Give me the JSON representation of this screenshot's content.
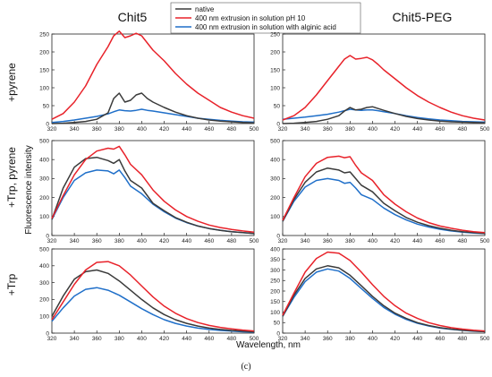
{
  "figure": {
    "column_titles": [
      "Chit5",
      "Chit5-PEG"
    ],
    "row_labels": [
      "+pyrene",
      "+Trp, pyrene",
      "+Trp"
    ],
    "ylabel": "Fluorescence intensity",
    "xlabel": "Wavelength, nm",
    "caption": "(c)",
    "legend": [
      {
        "label": "native",
        "color": "#3a3a3a"
      },
      {
        "label": "400 nm extrusion in solution pH 10",
        "color": "#e8222a"
      },
      {
        "label": "400 nm extrusion in solution with alginic acid",
        "color": "#1f6fc9"
      }
    ]
  },
  "chart_data": [
    {
      "type": "line",
      "panel": "pyrene-chit5",
      "xlim": [
        320,
        500
      ],
      "ylim": [
        0,
        250
      ],
      "xticks": [
        320,
        340,
        360,
        380,
        400,
        420,
        440,
        460,
        480,
        500
      ],
      "yticks": [
        0,
        50,
        100,
        150,
        200,
        250
      ],
      "x": [
        320,
        330,
        340,
        350,
        360,
        370,
        375,
        380,
        385,
        390,
        395,
        400,
        405,
        410,
        420,
        430,
        440,
        450,
        460,
        470,
        480,
        490,
        500
      ],
      "series": [
        {
          "name": "native",
          "values": [
            0,
            1,
            3,
            6,
            12,
            30,
            70,
            85,
            60,
            65,
            80,
            85,
            70,
            60,
            45,
            32,
            22,
            15,
            10,
            7,
            5,
            3,
            2
          ]
        },
        {
          "name": "400 nm extrusion in solution pH 10",
          "values": [
            12,
            28,
            60,
            105,
            165,
            215,
            245,
            258,
            240,
            245,
            252,
            245,
            225,
            205,
            175,
            140,
            110,
            85,
            65,
            45,
            32,
            22,
            15
          ]
        },
        {
          "name": "400 nm extrusion in solution with alginic acid",
          "values": [
            3,
            6,
            10,
            15,
            20,
            27,
            33,
            38,
            36,
            35,
            37,
            40,
            37,
            35,
            30,
            25,
            20,
            15,
            12,
            9,
            7,
            5,
            4
          ]
        }
      ]
    },
    {
      "type": "line",
      "panel": "pyrene-chit5peg",
      "xlim": [
        320,
        500
      ],
      "ylim": [
        0,
        250
      ],
      "xticks": [
        320,
        340,
        360,
        380,
        400,
        420,
        440,
        460,
        480,
        500
      ],
      "yticks": [
        0,
        50,
        100,
        150,
        200,
        250
      ],
      "x": [
        320,
        330,
        340,
        350,
        360,
        370,
        375,
        380,
        385,
        390,
        395,
        400,
        405,
        410,
        420,
        430,
        440,
        450,
        460,
        470,
        480,
        490,
        500
      ],
      "series": [
        {
          "name": "native",
          "values": [
            0,
            1,
            3,
            6,
            12,
            22,
            35,
            45,
            38,
            40,
            45,
            47,
            42,
            37,
            28,
            20,
            14,
            10,
            7,
            5,
            4,
            3,
            2
          ]
        },
        {
          "name": "400 nm extrusion in solution pH 10",
          "values": [
            10,
            22,
            45,
            80,
            120,
            160,
            180,
            190,
            180,
            182,
            185,
            178,
            165,
            150,
            125,
            100,
            78,
            60,
            45,
            32,
            22,
            15,
            10
          ]
        },
        {
          "name": "400 nm extrusion in solution with alginic acid",
          "values": [
            12,
            15,
            18,
            22,
            26,
            32,
            36,
            40,
            38,
            37,
            38,
            38,
            36,
            33,
            28,
            22,
            17,
            13,
            10,
            8,
            6,
            5,
            4
          ]
        }
      ]
    },
    {
      "type": "line",
      "panel": "trp-pyrene-chit5",
      "xlim": [
        320,
        500
      ],
      "ylim": [
        0,
        500
      ],
      "xticks": [
        320,
        340,
        360,
        380,
        400,
        420,
        440,
        460,
        480,
        500
      ],
      "yticks": [
        0,
        100,
        200,
        300,
        400,
        500
      ],
      "x": [
        320,
        330,
        340,
        350,
        360,
        370,
        375,
        380,
        385,
        390,
        400,
        410,
        420,
        430,
        440,
        450,
        460,
        470,
        480,
        490,
        500
      ],
      "series": [
        {
          "name": "native",
          "values": [
            85,
            250,
            360,
            405,
            412,
            395,
            380,
            400,
            340,
            290,
            250,
            170,
            130,
            95,
            70,
            50,
            37,
            27,
            20,
            15,
            11
          ]
        },
        {
          "name": "400 nm extrusion in solution pH 10",
          "values": [
            90,
            210,
            320,
            400,
            445,
            460,
            455,
            470,
            425,
            375,
            320,
            240,
            180,
            135,
            100,
            75,
            55,
            42,
            32,
            24,
            18
          ]
        },
        {
          "name": "400 nm extrusion in solution with alginic acid",
          "values": [
            85,
            200,
            290,
            330,
            345,
            340,
            325,
            345,
            305,
            260,
            220,
            165,
            125,
            92,
            68,
            50,
            37,
            28,
            20,
            15,
            11
          ]
        }
      ]
    },
    {
      "type": "line",
      "panel": "trp-pyrene-chit5peg",
      "xlim": [
        320,
        500
      ],
      "ylim": [
        0,
        500
      ],
      "xticks": [
        320,
        340,
        360,
        380,
        400,
        420,
        440,
        460,
        480,
        500
      ],
      "yticks": [
        0,
        100,
        200,
        300,
        400,
        500
      ],
      "x": [
        320,
        330,
        340,
        350,
        360,
        370,
        375,
        380,
        385,
        390,
        400,
        410,
        420,
        430,
        440,
        450,
        460,
        470,
        480,
        490,
        500
      ],
      "series": [
        {
          "name": "native",
          "values": [
            75,
            190,
            280,
            335,
            355,
            345,
            330,
            335,
            300,
            265,
            230,
            170,
            130,
            95,
            70,
            52,
            38,
            28,
            20,
            15,
            11
          ]
        },
        {
          "name": "400 nm extrusion in solution pH 10",
          "values": [
            80,
            200,
            310,
            380,
            412,
            418,
            410,
            415,
            370,
            330,
            290,
            215,
            165,
            125,
            92,
            68,
            50,
            38,
            28,
            20,
            15
          ]
        },
        {
          "name": "400 nm extrusion in solution with alginic acid",
          "values": [
            75,
            180,
            255,
            290,
            300,
            290,
            275,
            280,
            250,
            215,
            190,
            145,
            110,
            82,
            60,
            45,
            33,
            24,
            18,
            13,
            10
          ]
        }
      ]
    },
    {
      "type": "line",
      "panel": "trp-chit5",
      "xlim": [
        320,
        500
      ],
      "ylim": [
        0,
        500
      ],
      "xticks": [
        320,
        340,
        360,
        380,
        400,
        420,
        440,
        460,
        480,
        500
      ],
      "yticks": [
        0,
        100,
        200,
        300,
        400,
        500
      ],
      "x": [
        320,
        330,
        340,
        350,
        360,
        370,
        380,
        390,
        400,
        410,
        420,
        430,
        440,
        450,
        460,
        470,
        480,
        490,
        500
      ],
      "series": [
        {
          "name": "native",
          "values": [
            100,
            220,
            320,
            365,
            375,
            355,
            310,
            255,
            200,
            150,
            110,
            80,
            58,
            42,
            30,
            22,
            16,
            12,
            8
          ]
        },
        {
          "name": "400 nm extrusion in solution pH 10",
          "values": [
            80,
            185,
            290,
            375,
            420,
            425,
            400,
            345,
            280,
            215,
            160,
            118,
            86,
            63,
            46,
            34,
            25,
            18,
            13
          ]
        },
        {
          "name": "400 nm extrusion in solution with alginic acid",
          "values": [
            70,
            150,
            220,
            260,
            270,
            255,
            225,
            185,
            145,
            110,
            80,
            58,
            42,
            30,
            22,
            16,
            12,
            8,
            6
          ]
        }
      ]
    },
    {
      "type": "line",
      "panel": "trp-chit5peg",
      "xlim": [
        320,
        500
      ],
      "ylim": [
        0,
        400
      ],
      "xticks": [
        320,
        340,
        360,
        380,
        400,
        420,
        440,
        460,
        480,
        500
      ],
      "yticks": [
        0,
        50,
        100,
        150,
        200,
        250,
        300,
        350,
        400
      ],
      "x": [
        320,
        330,
        340,
        350,
        360,
        370,
        380,
        390,
        400,
        410,
        420,
        430,
        440,
        450,
        460,
        470,
        480,
        490,
        500
      ],
      "series": [
        {
          "name": "native",
          "values": [
            80,
            180,
            260,
            305,
            320,
            310,
            275,
            225,
            175,
            130,
            95,
            70,
            50,
            36,
            26,
            19,
            14,
            10,
            7
          ]
        },
        {
          "name": "400 nm extrusion in solution pH 10",
          "values": [
            85,
            190,
            290,
            355,
            385,
            380,
            345,
            290,
            230,
            175,
            130,
            95,
            70,
            50,
            36,
            26,
            19,
            14,
            10
          ]
        },
        {
          "name": "400 nm extrusion in solution with alginic acid",
          "values": [
            80,
            170,
            245,
            290,
            305,
            295,
            260,
            212,
            165,
            122,
            90,
            65,
            47,
            34,
            24,
            18,
            13,
            9,
            7
          ]
        }
      ]
    }
  ]
}
